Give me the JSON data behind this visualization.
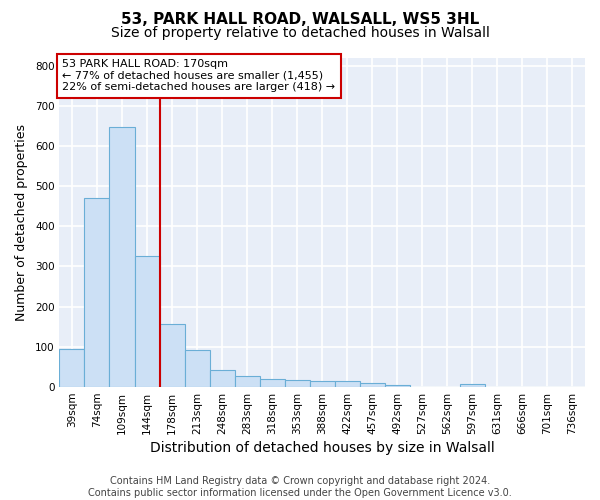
{
  "title_line1": "53, PARK HALL ROAD, WALSALL, WS5 3HL",
  "title_line2": "Size of property relative to detached houses in Walsall",
  "bar_labels": [
    "39sqm",
    "74sqm",
    "109sqm",
    "144sqm",
    "178sqm",
    "213sqm",
    "248sqm",
    "283sqm",
    "318sqm",
    "353sqm",
    "388sqm",
    "422sqm",
    "457sqm",
    "492sqm",
    "527sqm",
    "562sqm",
    "597sqm",
    "631sqm",
    "666sqm",
    "701sqm",
    "736sqm"
  ],
  "bar_values": [
    95,
    470,
    648,
    325,
    157,
    93,
    42,
    28,
    20,
    17,
    15,
    14,
    9,
    6,
    0,
    0,
    8,
    0,
    0,
    0,
    0
  ],
  "bar_color": "#cce0f5",
  "bar_edge_color": "#6aaed6",
  "bar_edge_width": 0.8,
  "vline_index": 4,
  "vline_color": "#cc0000",
  "xlabel": "Distribution of detached houses by size in Walsall",
  "ylabel": "Number of detached properties",
  "ylim": [
    0,
    820
  ],
  "yticks": [
    0,
    100,
    200,
    300,
    400,
    500,
    600,
    700,
    800
  ],
  "annotation_text": "53 PARK HALL ROAD: 170sqm\n← 77% of detached houses are smaller (1,455)\n22% of semi-detached houses are larger (418) →",
  "bg_color": "#e8eef8",
  "footer_text": "Contains HM Land Registry data © Crown copyright and database right 2024.\nContains public sector information licensed under the Open Government Licence v3.0.",
  "grid_color": "#ffffff",
  "title_fontsize": 11,
  "subtitle_fontsize": 10,
  "xlabel_fontsize": 10,
  "ylabel_fontsize": 9,
  "tick_fontsize": 7.5,
  "footer_fontsize": 7
}
